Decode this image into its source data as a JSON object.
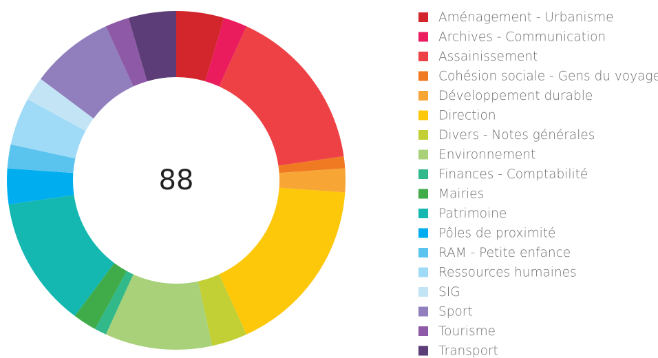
{
  "chart_data": {
    "type": "donut",
    "center_label": "88",
    "categories": [
      "Aménagement - Urbanisme",
      "Archives - Communication",
      "Assainissement",
      "Cohésion sociale - Gens du voyage",
      "Développement durable",
      "Direction",
      "Divers - Notes générales",
      "Environnement",
      "Finances - Comptabilité",
      "Mairies",
      "Patrimoine",
      "Pôles de proximité",
      "RAM - Petite enfance",
      "Ressources humaines",
      "SIG",
      "Sport",
      "Tourisme",
      "Transport"
    ],
    "values": [
      4,
      2,
      14,
      1,
      2,
      15,
      3,
      9,
      1,
      2,
      11,
      3,
      2,
      4,
      2,
      7,
      2,
      4
    ],
    "colors": [
      "#d3262c",
      "#ea1c5d",
      "#ee4145",
      "#f07a22",
      "#f7a535",
      "#fdc70a",
      "#c2cf35",
      "#a8d17a",
      "#32b98a",
      "#3fab49",
      "#14b8b1",
      "#00aeef",
      "#5bc4ee",
      "#9fdbf7",
      "#c2e4f5",
      "#917ebc",
      "#8e5aa7",
      "#5c3d78"
    ],
    "legend": "right"
  }
}
